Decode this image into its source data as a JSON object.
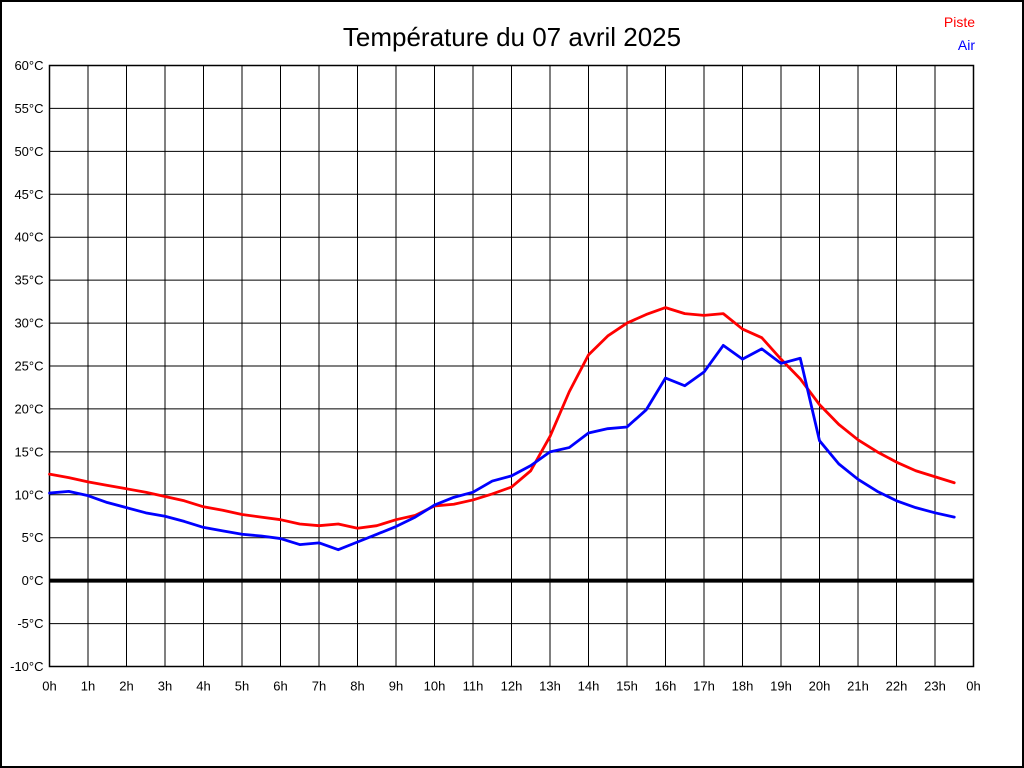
{
  "page": {
    "title": "Température du 07 avril 2025"
  },
  "legend": [
    {
      "label": "Piste",
      "color": "#ff0000"
    },
    {
      "label": "Air",
      "color": "#0000ff"
    }
  ],
  "chart_data": {
    "type": "line",
    "title": "Température du 07 avril 2025",
    "x_unit": "hour of day",
    "y_unit": "°C",
    "xlim": [
      0,
      24
    ],
    "ylim": [
      -10,
      60
    ],
    "grid": true,
    "zero_line_emphasized": true,
    "legend_position": "top-right",
    "x_tick_hours": [
      0,
      1,
      2,
      3,
      4,
      5,
      6,
      7,
      8,
      9,
      10,
      11,
      12,
      13,
      14,
      15,
      16,
      17,
      18,
      19,
      20,
      21,
      22,
      23,
      24
    ],
    "x_tick_labels": [
      "0h",
      "1h",
      "2h",
      "3h",
      "4h",
      "5h",
      "6h",
      "7h",
      "8h",
      "9h",
      "10h",
      "11h",
      "12h",
      "13h",
      "14h",
      "15h",
      "16h",
      "17h",
      "18h",
      "19h",
      "20h",
      "21h",
      "22h",
      "23h",
      "0h"
    ],
    "y_ticks": [
      60,
      55,
      50,
      45,
      40,
      35,
      30,
      25,
      20,
      15,
      10,
      5,
      0,
      -5,
      -10
    ],
    "y_tick_labels": [
      "60°C",
      "55°C",
      "50°C",
      "45°C",
      "40°C",
      "35°C",
      "30°C",
      "25°C",
      "20°C",
      "15°C",
      "10°C",
      "5°C",
      "0°C",
      "-5°C",
      "-10°C"
    ],
    "x": [
      0,
      0.5,
      1,
      1.5,
      2,
      2.5,
      3,
      3.5,
      4,
      4.5,
      5,
      5.5,
      6,
      6.5,
      7,
      7.5,
      8,
      8.5,
      9,
      9.5,
      10,
      10.5,
      11,
      11.5,
      12,
      12.5,
      13,
      13.5,
      14,
      14.5,
      15,
      15.5,
      16,
      16.5,
      17,
      17.5,
      18,
      18.5,
      19,
      19.5,
      20,
      20.5,
      21,
      21.5,
      22,
      22.5,
      23,
      23.5
    ],
    "series": [
      {
        "name": "Piste",
        "color": "#ff0000",
        "values": [
          12.4,
          12.0,
          11.5,
          11.1,
          10.7,
          10.3,
          9.8,
          9.3,
          8.6,
          8.2,
          7.7,
          7.4,
          7.1,
          6.6,
          6.4,
          6.6,
          6.1,
          6.4,
          7.1,
          7.6,
          8.7,
          8.9,
          9.4,
          10.1,
          10.9,
          12.8,
          16.8,
          22.0,
          26.3,
          28.5,
          30.0,
          31.0,
          31.8,
          31.1,
          30.9,
          31.1,
          29.3,
          28.3,
          25.8,
          23.5,
          20.5,
          18.2,
          16.4,
          15.0,
          13.8,
          12.8,
          12.1,
          11.4
        ]
      },
      {
        "name": "Air",
        "color": "#0000ff",
        "values": [
          10.2,
          10.4,
          9.9,
          9.1,
          8.5,
          7.9,
          7.5,
          6.9,
          6.2,
          5.8,
          5.4,
          5.2,
          4.9,
          4.2,
          4.4,
          3.6,
          4.5,
          5.4,
          6.3,
          7.4,
          8.8,
          9.7,
          10.3,
          11.6,
          12.2,
          13.4,
          15.0,
          15.5,
          17.2,
          17.7,
          17.9,
          19.9,
          23.6,
          22.7,
          24.3,
          27.4,
          25.8,
          27.0,
          25.3,
          25.9,
          16.3,
          13.6,
          11.8,
          10.4,
          9.3,
          8.5,
          7.9,
          7.4
        ]
      }
    ]
  }
}
